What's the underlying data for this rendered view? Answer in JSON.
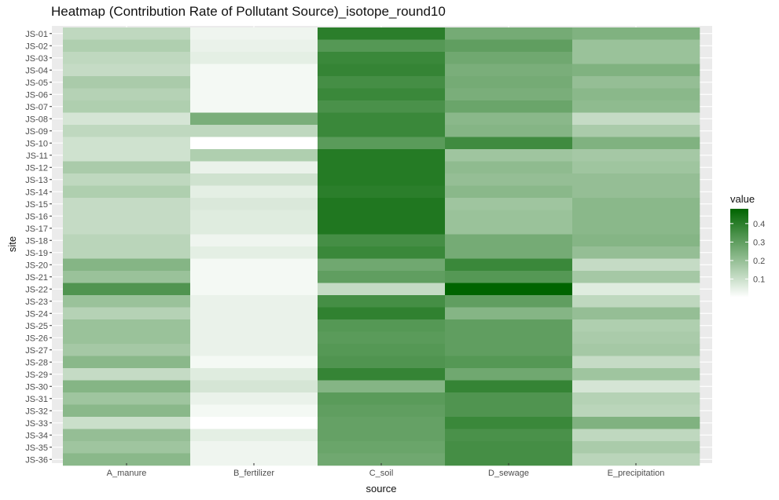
{
  "chart_data": {
    "type": "heatmap",
    "title": "Heatmap (Contribution Rate of Pollutant Source)_isotope_round10",
    "xlabel": "source",
    "ylabel": "site",
    "x": [
      "A_manure",
      "B_fertilizer",
      "C_soil",
      "D_sewage",
      "E_precipitation"
    ],
    "y": [
      "JS-01",
      "JS-02",
      "JS-03",
      "JS-04",
      "JS-05",
      "JS-06",
      "JS-07",
      "JS-08",
      "JS-09",
      "JS-10",
      "JS-11",
      "JS-12",
      "JS-13",
      "JS-14",
      "JS-15",
      "JS-16",
      "JS-17",
      "JS-18",
      "JS-19",
      "JS-20",
      "JS-21",
      "JS-22",
      "JS-23",
      "JS-24",
      "JS-25",
      "JS-26",
      "JS-27",
      "JS-28",
      "JS-29",
      "JS-30",
      "JS-31",
      "JS-32",
      "JS-33",
      "JS-34",
      "JS-35",
      "JS-36"
    ],
    "values": [
      [
        0.12,
        0.03,
        0.4,
        0.26,
        0.24
      ],
      [
        0.15,
        0.04,
        0.32,
        0.3,
        0.19
      ],
      [
        0.12,
        0.05,
        0.37,
        0.27,
        0.19
      ],
      [
        0.11,
        0.02,
        0.38,
        0.25,
        0.24
      ],
      [
        0.16,
        0.02,
        0.35,
        0.26,
        0.2
      ],
      [
        0.14,
        0.02,
        0.37,
        0.25,
        0.22
      ],
      [
        0.15,
        0.02,
        0.34,
        0.28,
        0.21
      ],
      [
        0.08,
        0.25,
        0.37,
        0.22,
        0.11
      ],
      [
        0.12,
        0.12,
        0.37,
        0.23,
        0.16
      ],
      [
        0.09,
        0.0,
        0.31,
        0.36,
        0.24
      ],
      [
        0.09,
        0.15,
        0.41,
        0.18,
        0.17
      ],
      [
        0.16,
        0.04,
        0.41,
        0.21,
        0.18
      ],
      [
        0.12,
        0.09,
        0.41,
        0.2,
        0.2
      ],
      [
        0.15,
        0.05,
        0.4,
        0.22,
        0.2
      ],
      [
        0.11,
        0.07,
        0.42,
        0.18,
        0.22
      ],
      [
        0.11,
        0.06,
        0.42,
        0.19,
        0.22
      ],
      [
        0.11,
        0.06,
        0.42,
        0.19,
        0.22
      ],
      [
        0.13,
        0.03,
        0.35,
        0.26,
        0.23
      ],
      [
        0.13,
        0.05,
        0.37,
        0.26,
        0.2
      ],
      [
        0.23,
        0.02,
        0.27,
        0.37,
        0.11
      ],
      [
        0.19,
        0.02,
        0.3,
        0.32,
        0.17
      ],
      [
        0.33,
        0.02,
        0.11,
        0.48,
        0.06
      ],
      [
        0.19,
        0.04,
        0.35,
        0.3,
        0.12
      ],
      [
        0.14,
        0.04,
        0.39,
        0.23,
        0.2
      ],
      [
        0.19,
        0.04,
        0.32,
        0.3,
        0.15
      ],
      [
        0.19,
        0.04,
        0.31,
        0.3,
        0.16
      ],
      [
        0.17,
        0.04,
        0.32,
        0.3,
        0.17
      ],
      [
        0.22,
        0.02,
        0.33,
        0.32,
        0.11
      ],
      [
        0.11,
        0.06,
        0.38,
        0.27,
        0.18
      ],
      [
        0.23,
        0.08,
        0.23,
        0.38,
        0.08
      ],
      [
        0.18,
        0.04,
        0.31,
        0.33,
        0.14
      ],
      [
        0.22,
        0.02,
        0.3,
        0.33,
        0.13
      ],
      [
        0.1,
        0.0,
        0.29,
        0.37,
        0.24
      ],
      [
        0.2,
        0.05,
        0.29,
        0.34,
        0.12
      ],
      [
        0.18,
        0.03,
        0.28,
        0.35,
        0.16
      ],
      [
        0.22,
        0.03,
        0.27,
        0.35,
        0.13
      ]
    ],
    "legend": {
      "title": "value",
      "position": "right",
      "breaks": [
        0.1,
        0.2,
        0.3,
        0.4
      ],
      "range": [
        0.0,
        0.48
      ],
      "low_color": "#ffffff",
      "high_color": "#006400"
    },
    "panel_background": "#ebebeb",
    "grid": true
  }
}
